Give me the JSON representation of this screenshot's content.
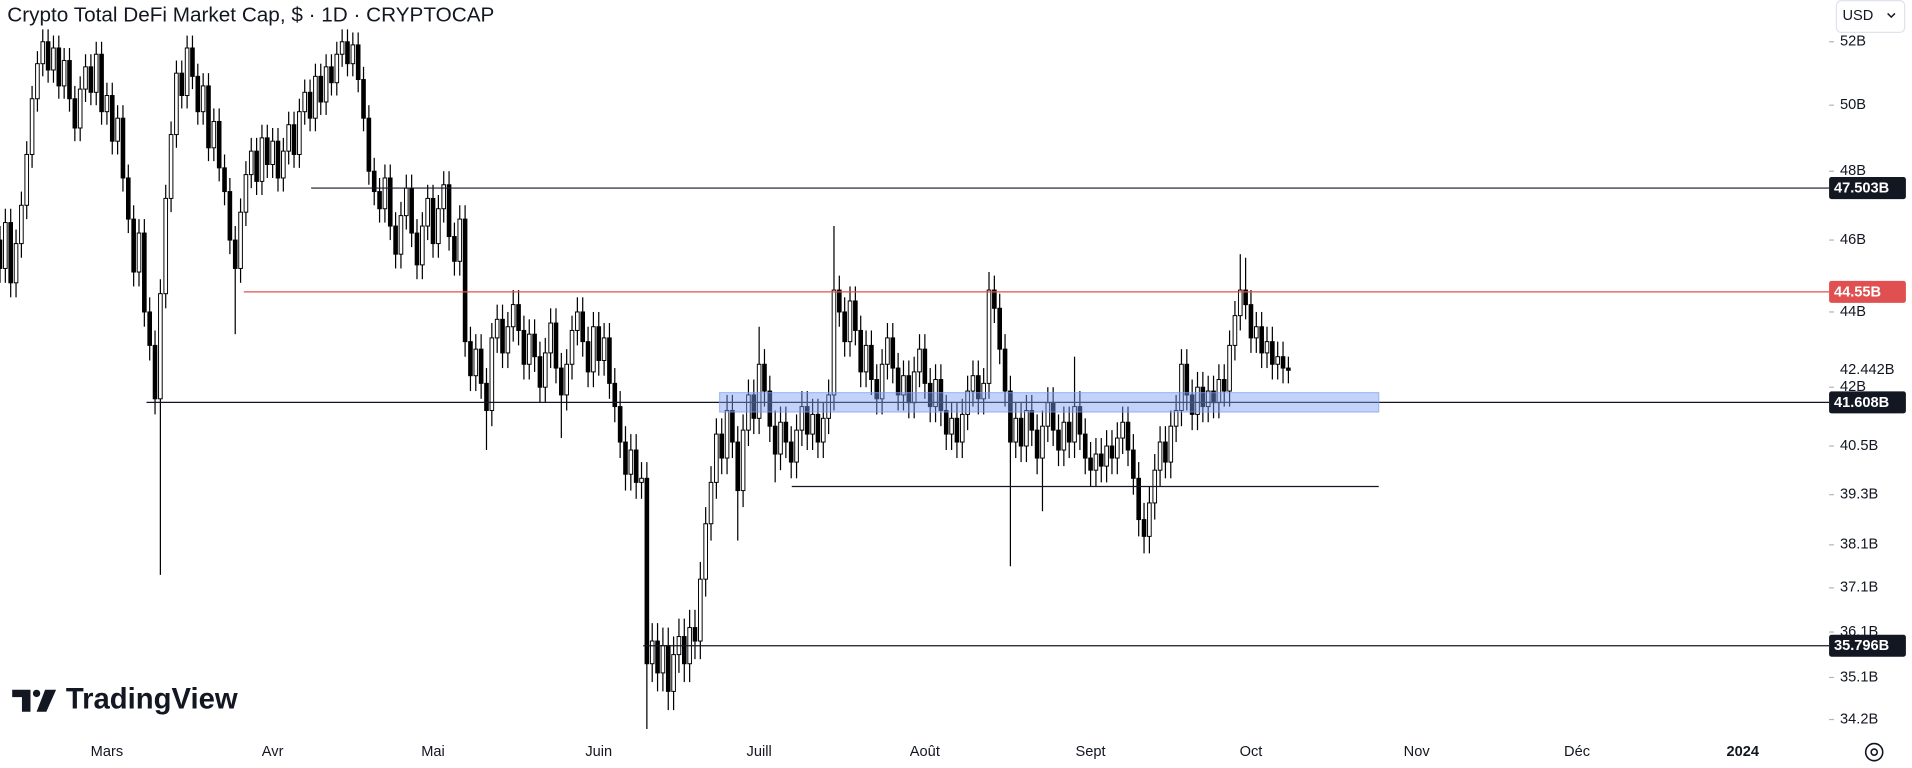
{
  "chart_data": {
    "type": "candlestick",
    "title": "Crypto Total DeFi Market Cap, $ · 1D · CRYPTOCAP",
    "log_scale": true,
    "grid": false,
    "up_color": "#ffffff",
    "down_color": "#000000",
    "border_color": "#000000",
    "xlim": [
      0,
      341
    ],
    "xticks": [
      {
        "value": 20,
        "label": "Mars"
      },
      {
        "value": 51,
        "label": "Avr"
      },
      {
        "value": 81,
        "label": "Mai"
      },
      {
        "value": 112,
        "label": "Juin"
      },
      {
        "value": 142,
        "label": "Juill"
      },
      {
        "value": 173,
        "label": "Août"
      },
      {
        "value": 204,
        "label": "Sept"
      },
      {
        "value": 234,
        "label": "Oct"
      },
      {
        "value": 265,
        "label": "Nov"
      },
      {
        "value": 295,
        "label": "Déc"
      },
      {
        "value": 326,
        "label": "2024"
      }
    ],
    "ylim": [
      33.9,
      53.36
    ],
    "yticks": [
      {
        "value": 52,
        "label": "52B"
      },
      {
        "value": 50,
        "label": "50B"
      },
      {
        "value": 48,
        "label": "48B"
      },
      {
        "value": 46,
        "label": "46B"
      },
      {
        "value": 44,
        "label": "44B"
      },
      {
        "value": 42,
        "label": "42B"
      },
      {
        "value": 40.5,
        "label": "40.5B"
      },
      {
        "value": 39.3,
        "label": "39.3B"
      },
      {
        "value": 38.1,
        "label": "38.1B"
      },
      {
        "value": 37.1,
        "label": "37.1B"
      },
      {
        "value": 36.1,
        "label": "36.1B"
      },
      {
        "value": 35.1,
        "label": "35.1B"
      },
      {
        "value": 34.2,
        "label": "34.2B"
      }
    ],
    "open": [
      46.0,
      45.2,
      46.5,
      44.8,
      45.9,
      47.0,
      48.5,
      50.2,
      51.3,
      52.0,
      51.1,
      51.8,
      50.6,
      51.4,
      50.2,
      49.3,
      50.5,
      51.2,
      50.4,
      51.6,
      49.8,
      50.3,
      48.9,
      49.6,
      47.8,
      46.6,
      45.1,
      46.2,
      44.0,
      43.1,
      41.7,
      44.5,
      47.2,
      49.1,
      51.0,
      50.3,
      51.8,
      50.9,
      49.8,
      50.6,
      48.7,
      49.5,
      48.1,
      47.4,
      46.0,
      45.2,
      46.8,
      47.9,
      48.6,
      47.7,
      49.0,
      48.2,
      48.9,
      47.8,
      48.6,
      49.4,
      48.5,
      49.8,
      50.4,
      49.6,
      50.9,
      50.1,
      51.2,
      50.7,
      51.6,
      52.0,
      51.3,
      51.9,
      50.8,
      49.6,
      48.0,
      47.4,
      46.9,
      47.8,
      46.4,
      45.6,
      46.7,
      47.5,
      46.2,
      45.3,
      46.4,
      47.2,
      45.9,
      46.9,
      47.6,
      46.1,
      45.4,
      46.6,
      43.2,
      42.3,
      43.0,
      42.1,
      41.4,
      43.3,
      43.8,
      42.9,
      43.6,
      44.2,
      43.5,
      42.6,
      43.4,
      42.8,
      42.0,
      42.9,
      43.7,
      42.5,
      41.8,
      42.6,
      43.5,
      44.0,
      43.2,
      42.4,
      43.6,
      42.7,
      43.3,
      42.1,
      41.5,
      40.6,
      39.8,
      40.4,
      39.6,
      39.7,
      35.4,
      35.9,
      35.2,
      35.8,
      34.8,
      35.6,
      36.0,
      35.4,
      36.2,
      35.9,
      37.3,
      38.6,
      39.6,
      40.8,
      40.2,
      41.4,
      40.6,
      39.4,
      40.9,
      41.8,
      41.2,
      42.6,
      41.9,
      41.0,
      40.3,
      41.1,
      40.6,
      40.1,
      40.9,
      41.5,
      40.8,
      41.3,
      40.6,
      41.2,
      41.8,
      44.6,
      44.0,
      43.2,
      44.3,
      43.5,
      42.4,
      43.1,
      42.2,
      41.7,
      42.6,
      43.3,
      42.5,
      41.8,
      42.3,
      41.6,
      42.4,
      43.0,
      42.1,
      41.5,
      42.2,
      41.4,
      40.8,
      41.2,
      40.6,
      41.3,
      41.9,
      42.3,
      41.7,
      42.1,
      44.6,
      44.1,
      43.0,
      41.9,
      40.6,
      41.2,
      40.5,
      41.4,
      40.9,
      40.2,
      41.0,
      41.6,
      40.9,
      40.4,
      41.1,
      40.6,
      41.5,
      40.8,
      40.2,
      39.9,
      40.3,
      40.0,
      40.5,
      40.2,
      40.7,
      41.1,
      40.4,
      39.7,
      38.7,
      38.3,
      39.1,
      39.9,
      40.6,
      40.1,
      41.0,
      41.4,
      42.6,
      41.8,
      41.3,
      42.0,
      41.5,
      41.9,
      41.6,
      42.2,
      41.9,
      43.1,
      43.9,
      44.6,
      44.2,
      43.3,
      43.6,
      42.9,
      43.2,
      42.6,
      42.8,
      42.5
    ],
    "high": [
      46.4,
      46.9,
      46.9,
      46.3,
      47.4,
      48.9,
      50.6,
      51.7,
      52.4,
      52.4,
      52.2,
      52.2,
      51.8,
      51.8,
      50.6,
      50.9,
      51.6,
      51.6,
      52.0,
      52.0,
      50.7,
      50.7,
      50.0,
      50.0,
      48.2,
      47.0,
      46.6,
      46.6,
      44.4,
      43.5,
      44.9,
      47.6,
      49.5,
      51.4,
      51.4,
      52.2,
      52.2,
      51.3,
      51.0,
      51.0,
      49.9,
      49.9,
      48.5,
      47.8,
      46.4,
      47.2,
      48.3,
      49.0,
      49.0,
      49.4,
      49.4,
      49.3,
      49.3,
      49.0,
      49.8,
      49.8,
      50.2,
      50.8,
      50.8,
      51.3,
      51.3,
      51.6,
      51.6,
      52.0,
      52.4,
      52.4,
      52.3,
      52.3,
      51.2,
      50.0,
      48.4,
      47.8,
      48.2,
      48.2,
      46.8,
      47.1,
      47.9,
      47.9,
      46.6,
      46.8,
      47.6,
      47.6,
      47.3,
      48.0,
      48.0,
      46.5,
      47.0,
      47.0,
      43.6,
      43.4,
      43.4,
      42.5,
      43.7,
      44.2,
      44.2,
      44.0,
      44.6,
      44.6,
      43.9,
      43.8,
      43.8,
      43.2,
      43.3,
      44.1,
      44.1,
      42.9,
      43.0,
      43.9,
      44.4,
      44.4,
      43.6,
      44.0,
      44.0,
      43.7,
      43.7,
      42.5,
      41.9,
      41.0,
      40.8,
      40.8,
      40.1,
      40.1,
      36.3,
      36.3,
      36.2,
      36.2,
      36.0,
      36.4,
      36.4,
      36.6,
      36.6,
      37.7,
      39.0,
      40.0,
      41.2,
      41.2,
      41.8,
      41.8,
      41.0,
      41.3,
      42.2,
      42.2,
      43.6,
      43.0,
      42.3,
      41.4,
      41.5,
      41.5,
      41.0,
      41.3,
      41.9,
      41.9,
      41.7,
      41.7,
      41.6,
      42.2,
      46.4,
      45.0,
      44.4,
      44.7,
      44.7,
      43.9,
      43.5,
      43.5,
      42.6,
      43.0,
      43.7,
      43.7,
      42.9,
      42.7,
      42.7,
      42.8,
      43.4,
      43.4,
      42.5,
      42.6,
      42.6,
      41.8,
      41.6,
      41.6,
      41.7,
      42.3,
      42.7,
      42.7,
      42.5,
      45.1,
      45.0,
      44.5,
      43.4,
      42.3,
      41.6,
      41.6,
      41.8,
      41.8,
      41.3,
      41.4,
      42.0,
      42.0,
      41.3,
      41.5,
      41.5,
      42.8,
      41.9,
      41.2,
      40.6,
      40.7,
      40.7,
      40.9,
      40.9,
      41.1,
      41.5,
      41.5,
      40.8,
      40.1,
      39.1,
      39.5,
      40.3,
      41.0,
      41.0,
      41.4,
      41.8,
      43.0,
      43.0,
      42.2,
      42.4,
      42.4,
      42.3,
      42.3,
      42.6,
      42.6,
      43.5,
      44.3,
      45.6,
      45.5,
      44.6,
      44.0,
      44.0,
      43.6,
      43.6,
      43.2,
      43.2,
      42.8
    ],
    "low": [
      44.8,
      44.8,
      44.4,
      44.4,
      45.5,
      46.6,
      48.1,
      49.8,
      50.9,
      50.7,
      50.7,
      50.2,
      50.2,
      49.8,
      48.9,
      48.9,
      50.1,
      50.0,
      50.0,
      49.4,
      49.4,
      48.5,
      48.5,
      47.4,
      46.2,
      44.7,
      44.7,
      43.6,
      42.7,
      41.3,
      37.4,
      44.1,
      46.8,
      48.7,
      49.9,
      49.9,
      50.5,
      49.4,
      49.4,
      48.3,
      48.3,
      47.7,
      47.0,
      45.6,
      43.4,
      44.8,
      46.4,
      47.5,
      47.3,
      47.3,
      47.8,
      47.8,
      47.4,
      47.4,
      48.2,
      48.1,
      48.1,
      49.4,
      49.2,
      49.2,
      49.7,
      49.7,
      50.3,
      50.3,
      51.2,
      50.9,
      50.9,
      50.4,
      49.2,
      47.6,
      47.0,
      46.5,
      46.5,
      46.0,
      45.2,
      45.2,
      46.3,
      45.8,
      44.9,
      44.9,
      46.0,
      45.5,
      45.5,
      46.5,
      45.7,
      45.0,
      45.0,
      42.8,
      41.9,
      41.9,
      41.7,
      40.4,
      41.0,
      42.9,
      42.5,
      42.5,
      43.2,
      43.1,
      42.2,
      42.2,
      42.4,
      41.6,
      41.6,
      42.5,
      42.1,
      40.7,
      41.4,
      42.2,
      43.1,
      42.8,
      42.0,
      42.0,
      42.3,
      42.3,
      41.7,
      41.1,
      40.2,
      39.4,
      39.4,
      39.2,
      39.2,
      34.0,
      35.0,
      34.8,
      34.8,
      34.4,
      34.4,
      35.2,
      35.0,
      35.0,
      35.5,
      35.5,
      36.9,
      38.2,
      39.2,
      39.8,
      39.8,
      40.2,
      38.2,
      39.0,
      40.5,
      40.8,
      40.8,
      41.5,
      40.6,
      39.6,
      39.9,
      40.2,
      39.7,
      39.7,
      40.5,
      40.4,
      40.4,
      40.2,
      40.2,
      40.8,
      41.4,
      43.6,
      42.8,
      42.8,
      43.1,
      42.0,
      42.0,
      41.8,
      41.3,
      41.3,
      42.2,
      42.1,
      41.4,
      41.4,
      41.2,
      41.2,
      42.0,
      41.7,
      41.1,
      41.1,
      41.0,
      40.4,
      40.4,
      40.2,
      40.2,
      40.9,
      41.5,
      41.3,
      41.3,
      41.7,
      43.7,
      42.6,
      41.5,
      37.6,
      40.2,
      40.1,
      40.1,
      40.5,
      39.8,
      38.9,
      40.6,
      40.5,
      40.0,
      40.0,
      40.2,
      40.2,
      40.4,
      39.8,
      39.5,
      39.5,
      39.6,
      39.6,
      39.8,
      39.8,
      40.3,
      40.0,
      39.3,
      38.3,
      37.9,
      37.9,
      38.7,
      39.5,
      39.7,
      39.7,
      40.6,
      41.0,
      41.4,
      40.9,
      40.9,
      41.1,
      41.1,
      41.2,
      41.2,
      41.5,
      41.5,
      42.7,
      43.5,
      43.8,
      42.9,
      42.9,
      42.5,
      42.5,
      42.2,
      42.2,
      42.1,
      42.1
    ],
    "close": [
      45.2,
      46.5,
      44.8,
      45.9,
      47.0,
      48.5,
      50.2,
      51.3,
      52.0,
      51.1,
      51.8,
      50.6,
      51.4,
      50.2,
      49.3,
      50.5,
      51.2,
      50.4,
      51.6,
      49.8,
      50.3,
      48.9,
      49.6,
      47.8,
      46.6,
      45.1,
      46.2,
      44.0,
      43.1,
      41.7,
      44.5,
      47.2,
      49.1,
      51.0,
      50.3,
      51.8,
      50.9,
      49.8,
      50.6,
      48.7,
      49.5,
      48.1,
      47.4,
      46.0,
      45.2,
      46.8,
      47.9,
      48.6,
      47.7,
      49.0,
      48.2,
      48.9,
      47.8,
      48.6,
      49.4,
      48.5,
      49.8,
      50.4,
      49.6,
      50.9,
      50.1,
      51.2,
      50.7,
      51.6,
      52.0,
      51.3,
      51.9,
      50.8,
      49.6,
      48.0,
      47.4,
      46.9,
      47.8,
      46.4,
      45.6,
      46.7,
      47.5,
      46.2,
      45.3,
      46.4,
      47.2,
      45.9,
      46.9,
      47.6,
      46.1,
      45.4,
      46.6,
      43.2,
      42.3,
      43.0,
      42.1,
      41.4,
      43.3,
      43.8,
      42.9,
      43.6,
      44.2,
      43.5,
      42.6,
      43.4,
      42.8,
      42.0,
      42.9,
      43.7,
      42.5,
      41.8,
      42.6,
      43.5,
      44.0,
      43.2,
      42.4,
      43.6,
      42.7,
      43.3,
      42.1,
      41.5,
      40.6,
      39.8,
      40.4,
      39.6,
      39.7,
      35.4,
      35.9,
      35.2,
      35.8,
      34.8,
      35.6,
      36.0,
      35.4,
      36.2,
      35.9,
      37.3,
      38.6,
      39.6,
      40.8,
      40.2,
      41.4,
      40.6,
      39.4,
      40.9,
      41.8,
      41.2,
      42.6,
      41.9,
      41.0,
      40.3,
      41.1,
      40.6,
      40.1,
      40.9,
      41.5,
      40.8,
      41.3,
      40.6,
      41.2,
      41.8,
      44.6,
      44.0,
      43.2,
      44.3,
      43.5,
      42.4,
      43.1,
      42.2,
      41.7,
      42.6,
      43.3,
      42.5,
      41.8,
      42.3,
      41.6,
      42.4,
      43.0,
      42.1,
      41.5,
      42.2,
      41.4,
      40.8,
      41.2,
      40.6,
      41.3,
      41.9,
      42.3,
      41.7,
      42.1,
      44.6,
      44.1,
      43.0,
      41.9,
      40.6,
      41.2,
      40.5,
      41.4,
      40.9,
      40.2,
      41.0,
      41.6,
      40.9,
      40.4,
      41.1,
      40.6,
      41.5,
      40.8,
      40.2,
      39.9,
      40.3,
      40.0,
      40.5,
      40.2,
      40.7,
      41.1,
      40.4,
      39.7,
      38.7,
      38.3,
      39.1,
      39.9,
      40.6,
      40.1,
      41.0,
      41.4,
      42.6,
      41.8,
      41.3,
      42.0,
      41.5,
      41.9,
      41.6,
      42.2,
      41.9,
      43.1,
      43.9,
      44.6,
      44.2,
      43.3,
      43.6,
      42.9,
      43.2,
      42.6,
      42.8,
      42.5,
      42.442
    ],
    "last_label": "42.442B",
    "hlines": [
      {
        "value": 47.503,
        "label": "47.503B",
        "color": "#131722",
        "start": 58.2
      },
      {
        "value": 44.55,
        "label": "44.55B",
        "color": "#e05050",
        "start": 45.6
      },
      {
        "value": 41.608,
        "label": "41.608B",
        "color": "#131722",
        "start": 27.4
      },
      {
        "value": 35.796,
        "label": "35.796B",
        "color": "#131722",
        "start": 120.3
      },
      {
        "value": 39.5,
        "color": "#131722",
        "start": 148.1,
        "end": 257.9
      }
    ],
    "zone": {
      "top": 41.86,
      "bottom": 41.36,
      "start": 134.6,
      "end": 257.9,
      "color": "#7b9cf0"
    }
  },
  "ui": {
    "currency": "USD",
    "logo": "TradingView"
  }
}
